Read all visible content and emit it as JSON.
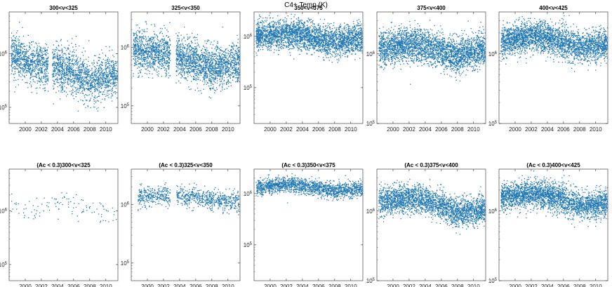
{
  "figure": {
    "title": "C4+ Temp (K)"
  },
  "colors": {
    "marker": "#1f77b4",
    "axis": "#262626"
  },
  "chart_data": [
    {
      "type": "scatter",
      "title": "300<v<325",
      "xlim": [
        1998,
        2011.5
      ],
      "ylim": [
        50000,
        6000000
      ],
      "yscale": "log",
      "xticks": [
        "2000",
        "2002",
        "2004",
        "2006",
        "2008",
        "2010"
      ],
      "yticks": [
        "10^5",
        "10^6"
      ],
      "cloud": [
        [
          1998.2,
          1000000
        ],
        [
          2000,
          700000
        ],
        [
          2002,
          600000
        ],
        [
          2004,
          550000
        ],
        [
          2006,
          450000
        ],
        [
          2008,
          300000
        ],
        [
          2010,
          350000
        ],
        [
          2011.4,
          400000
        ]
      ],
      "spread": 0.4,
      "points": 2400,
      "gaps": [
        [
          2002.8,
          2003.3
        ]
      ]
    },
    {
      "type": "scatter",
      "title": "325<v<350",
      "xlim": [
        1998,
        2011.5
      ],
      "ylim": [
        50000,
        4000000
      ],
      "yscale": "log",
      "xticks": [
        "2000",
        "2002",
        "2004",
        "2006",
        "2008",
        "2010"
      ],
      "yticks": [
        "10^5",
        "10^6"
      ],
      "cloud": [
        [
          1998.2,
          900000
        ],
        [
          2000,
          850000
        ],
        [
          2002,
          800000
        ],
        [
          2004,
          650000
        ],
        [
          2006,
          550000
        ],
        [
          2008,
          450000
        ],
        [
          2010,
          500000
        ],
        [
          2011.4,
          550000
        ]
      ],
      "spread": 0.35,
      "points": 2600,
      "gaps": [
        [
          2002.8,
          2003.5
        ]
      ]
    },
    {
      "type": "scatter",
      "title": "350<v<375",
      "xlim": [
        1998,
        2011.5
      ],
      "ylim": [
        20000,
        3000000
      ],
      "yscale": "log",
      "xticks": [
        "2000",
        "2002",
        "2004",
        "2006",
        "2008",
        "2010"
      ],
      "yticks": [
        "10^5",
        "10^6"
      ],
      "cloud": [
        [
          1998.2,
          1000000
        ],
        [
          2000,
          1100000
        ],
        [
          2002,
          1150000
        ],
        [
          2004,
          1050000
        ],
        [
          2006,
          900000
        ],
        [
          2008,
          800000
        ],
        [
          2010,
          900000
        ],
        [
          2011.4,
          950000
        ]
      ],
      "spread": 0.28,
      "points": 3000,
      "gaps": []
    },
    {
      "type": "scatter",
      "title": "375<v<400",
      "xlim": [
        1998,
        2011.5
      ],
      "ylim": [
        100000,
        4000000
      ],
      "yscale": "log",
      "xticks": [
        "2000",
        "2002",
        "2004",
        "2006",
        "2008",
        "2010"
      ],
      "yticks": [
        "10^5",
        "10^6"
      ],
      "cloud": [
        [
          1998.2,
          1200000
        ],
        [
          2000,
          1300000
        ],
        [
          2002,
          1400000
        ],
        [
          2004,
          1350000
        ],
        [
          2006,
          1100000
        ],
        [
          2008,
          950000
        ],
        [
          2010,
          1100000
        ],
        [
          2011.4,
          1200000
        ]
      ],
      "spread": 0.24,
      "points": 3000,
      "gaps": []
    },
    {
      "type": "scatter",
      "title": "400<v<425",
      "xlim": [
        1998,
        2011.5
      ],
      "ylim": [
        100000,
        4000000
      ],
      "yscale": "log",
      "xticks": [
        "2000",
        "2002",
        "2004",
        "2006",
        "2008",
        "2010"
      ],
      "yticks": [
        "10^5",
        "10^6"
      ],
      "cloud": [
        [
          1998.2,
          1500000
        ],
        [
          2000,
          1700000
        ],
        [
          2002,
          1800000
        ],
        [
          2004,
          1700000
        ],
        [
          2006,
          1450000
        ],
        [
          2008,
          1250000
        ],
        [
          2010,
          1300000
        ],
        [
          2011.4,
          1400000
        ]
      ],
      "spread": 0.22,
      "points": 3000,
      "gaps": []
    },
    {
      "type": "scatter",
      "title": "(Ac < 0.3)300<v<325",
      "xlim": [
        1998,
        2011.5
      ],
      "ylim": [
        50000,
        6000000
      ],
      "yscale": "log",
      "xticks": [
        "2000",
        "2002",
        "2004",
        "2006",
        "2008",
        "2010"
      ],
      "yticks": [
        "10^5",
        "10^6"
      ],
      "cloud": [
        [
          1998.2,
          1400000
        ],
        [
          2000,
          1100000
        ],
        [
          2002,
          1200000
        ],
        [
          2004,
          1300000
        ],
        [
          2006,
          1300000
        ],
        [
          2008,
          1100000
        ],
        [
          2010,
          1000000
        ],
        [
          2011.4,
          1000000
        ]
      ],
      "spread": 0.22,
      "points": 110,
      "gaps": []
    },
    {
      "type": "scatter",
      "title": "(Ac < 0.3)325<v<350",
      "xlim": [
        1998,
        2011.5
      ],
      "ylim": [
        50000,
        4000000
      ],
      "yscale": "log",
      "xticks": [
        "2000",
        "2002",
        "2004",
        "2006",
        "2008",
        "2010"
      ],
      "yticks": [
        "10^5",
        "10^6"
      ],
      "cloud": [
        [
          1998.8,
          1300000
        ],
        [
          2000,
          1400000
        ],
        [
          2002,
          1500000
        ],
        [
          2004,
          1400000
        ],
        [
          2006,
          1350000
        ],
        [
          2008,
          1200000
        ],
        [
          2010,
          1100000
        ],
        [
          2011.4,
          1100000
        ]
      ],
      "spread": 0.17,
      "points": 900,
      "gaps": [
        [
          1998,
          1998.7
        ],
        [
          2002.8,
          2003.6
        ]
      ]
    },
    {
      "type": "scatter",
      "title": "(Ac < 0.3)350<v<375",
      "xlim": [
        1998,
        2011.5
      ],
      "ylim": [
        20000,
        3000000
      ],
      "yscale": "log",
      "xticks": [
        "2000",
        "2002",
        "2004",
        "2006",
        "2008",
        "2010"
      ],
      "yticks": [
        "10^5",
        "10^6"
      ],
      "cloud": [
        [
          1998.2,
          1300000
        ],
        [
          2000,
          1450000
        ],
        [
          2002,
          1550000
        ],
        [
          2004,
          1450000
        ],
        [
          2006,
          1300000
        ],
        [
          2008,
          1150000
        ],
        [
          2010,
          1200000
        ],
        [
          2011.4,
          1250000
        ]
      ],
      "spread": 0.15,
      "points": 1700,
      "gaps": []
    },
    {
      "type": "scatter",
      "title": "(Ac < 0.3)375<v<400",
      "xlim": [
        1998,
        2011.5
      ],
      "ylim": [
        100000,
        4000000
      ],
      "yscale": "log",
      "xticks": [
        "2000",
        "2002",
        "2004",
        "2006",
        "2008",
        "2010"
      ],
      "yticks": [
        "10^5",
        "10^6"
      ],
      "cloud": [
        [
          1998.2,
          1400000
        ],
        [
          2000,
          1500000
        ],
        [
          2002,
          1550000
        ],
        [
          2004,
          1450000
        ],
        [
          2006,
          1200000
        ],
        [
          2008,
          950000
        ],
        [
          2010,
          1000000
        ],
        [
          2011.4,
          1100000
        ]
      ],
      "spread": 0.2,
      "points": 2600,
      "gaps": []
    },
    {
      "type": "scatter",
      "title": "(Ac < 0.3)400<v<425",
      "xlim": [
        1998,
        2011.5
      ],
      "ylim": [
        100000,
        4000000
      ],
      "yscale": "log",
      "xticks": [
        "2000",
        "2002",
        "2004",
        "2006",
        "2008",
        "2010"
      ],
      "yticks": [
        "10^5",
        "10^6"
      ],
      "cloud": [
        [
          1998.2,
          1600000
        ],
        [
          2000,
          1700000
        ],
        [
          2002,
          1800000
        ],
        [
          2004,
          1700000
        ],
        [
          2006,
          1450000
        ],
        [
          2008,
          1200000
        ],
        [
          2010,
          1250000
        ],
        [
          2011.4,
          1350000
        ]
      ],
      "spread": 0.2,
      "points": 2800,
      "gaps": []
    }
  ]
}
